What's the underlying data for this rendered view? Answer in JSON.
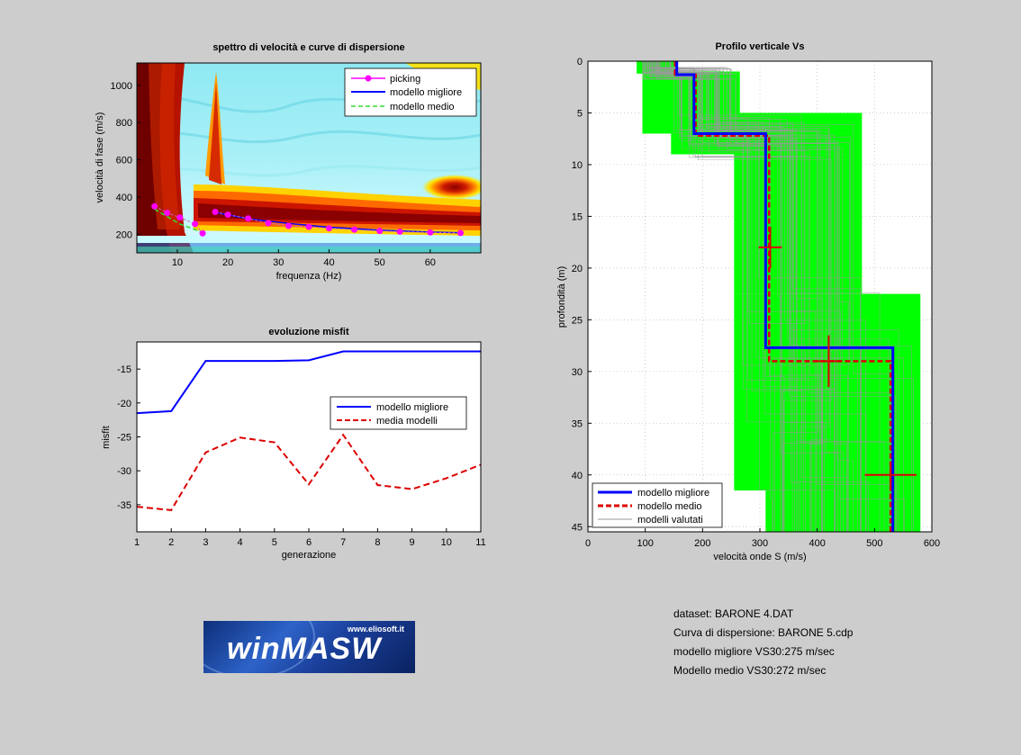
{
  "chart_data": [
    {
      "type": "heatmap",
      "title": "spettro di velocità e curve di dispersione",
      "xlabel": "frequenza (Hz)",
      "ylabel": "velocità di fase (m/s)",
      "xlim": [
        2,
        70
      ],
      "ylim": [
        100,
        1120
      ],
      "xticks": [
        10,
        20,
        30,
        40,
        50,
        60
      ],
      "yticks": [
        200,
        400,
        600,
        800,
        1000
      ],
      "legend_position": "top-right",
      "series": [
        {
          "name": "picking",
          "color": "#ff00ff",
          "style": "marker-line",
          "x": [
            5.5,
            8,
            10.5,
            13.5,
            15,
            17.5,
            20,
            24,
            28,
            32,
            36,
            40,
            45,
            50,
            54,
            60,
            66
          ],
          "y": [
            350,
            315,
            290,
            255,
            205,
            320,
            305,
            285,
            260,
            245,
            240,
            232,
            225,
            218,
            214,
            210,
            207
          ]
        },
        {
          "name": "modello migliore",
          "color": "#0000ff",
          "style": "solid",
          "x": [
            17.5,
            24,
            32,
            40,
            50,
            60,
            66
          ],
          "y": [
            318,
            283,
            258,
            238,
            222,
            212,
            208
          ]
        },
        {
          "name": "modello medio",
          "color": "#33dd33",
          "style": "dashed",
          "x": [
            5.5,
            8,
            10.5,
            13.5,
            15.5
          ],
          "y": [
            335,
            295,
            255,
            225,
            205
          ]
        }
      ]
    },
    {
      "type": "line",
      "title": "evoluzione misfit",
      "xlabel": "generazione",
      "ylabel": "misfit",
      "xlim": [
        1,
        11
      ],
      "ylim": [
        -39,
        -11
      ],
      "xticks": [
        1,
        2,
        3,
        4,
        5,
        6,
        7,
        8,
        9,
        10,
        11
      ],
      "yticks": [
        -15,
        -20,
        -25,
        -30,
        -35
      ],
      "legend_position": "center-right",
      "x": [
        1,
        2,
        3,
        4,
        5,
        6,
        7,
        8,
        9,
        10,
        11
      ],
      "series": [
        {
          "name": "modello migliore",
          "color": "#0000ff",
          "style": "solid",
          "values": [
            -21.5,
            -21.2,
            -13.8,
            -13.8,
            -13.8,
            -13.7,
            -12.4,
            -12.4,
            -12.4,
            -12.4,
            -12.4
          ]
        },
        {
          "name": "media modelli",
          "color": "#dd0000",
          "style": "dashed",
          "values": [
            -35.3,
            -35.8,
            -27.3,
            -25.1,
            -25.8,
            -32.0,
            -24.7,
            -32.1,
            -32.7,
            -31.1,
            -29.1
          ]
        }
      ]
    },
    {
      "type": "line",
      "title": "Profilo verticale Vs",
      "xlabel": "velocità onde S (m/s)",
      "ylabel": "profondità (m)",
      "xlim": [
        0,
        600
      ],
      "ylim": [
        0,
        45.5
      ],
      "y_inverted": true,
      "xticks": [
        0,
        100,
        200,
        300,
        400,
        500,
        600
      ],
      "yticks": [
        0,
        5,
        10,
        15,
        20,
        25,
        30,
        35,
        40,
        45
      ],
      "legend_position": "bottom-left",
      "envelope": {
        "color": "#00ff00",
        "min_v": [
          [
            0,
            1.2,
            85
          ],
          [
            1.2,
            7,
            95
          ],
          [
            7,
            9,
            145
          ],
          [
            9,
            41.5,
            255
          ],
          [
            41.5,
            45.5,
            310
          ]
        ],
        "max_v": [
          [
            0,
            1,
            152
          ],
          [
            1,
            5,
            265
          ],
          [
            5,
            22.5,
            478
          ],
          [
            22.5,
            45.5,
            580
          ]
        ]
      },
      "series": [
        {
          "name": "modello migliore",
          "color": "#0000ff",
          "style": "solid",
          "steps": [
            [
              155,
              0
            ],
            [
              155,
              1.3
            ],
            [
              185,
              1.3
            ],
            [
              185,
              7
            ],
            [
              310,
              7
            ],
            [
              310,
              27.7
            ],
            [
              532,
              27.7
            ],
            [
              532,
              45.5
            ]
          ]
        },
        {
          "name": "modello medio",
          "color": "#dd0000",
          "style": "dashed",
          "steps": [
            [
              152,
              0
            ],
            [
              152,
              1.3
            ],
            [
              188,
              1.3
            ],
            [
              188,
              7.2
            ],
            [
              316,
              7.2
            ],
            [
              316,
              29
            ],
            [
              528,
              29
            ],
            [
              528,
              45.5
            ]
          ]
        },
        {
          "name": "modelli valutati",
          "color": "#999999",
          "style": "thin"
        }
      ],
      "error_crosses": [
        {
          "v": 318,
          "z": 18,
          "dv": 20,
          "dz": 2
        },
        {
          "v": 420,
          "z": 29,
          "dv": 22,
          "dz": 2.5
        },
        {
          "v": 528,
          "z": 40,
          "dv": 45,
          "dz": 1.2
        }
      ]
    }
  ],
  "info": {
    "dataset": "dataset: BARONE 4.DAT",
    "curva": "Curva di dispersione: BARONE 5.cdp",
    "migliore": "modello migliore VS30:275 m/sec",
    "medio": "Modello medio VS30:272 m/sec"
  },
  "logo": {
    "name": "winMASW",
    "site": "www.eliosoft.it"
  }
}
